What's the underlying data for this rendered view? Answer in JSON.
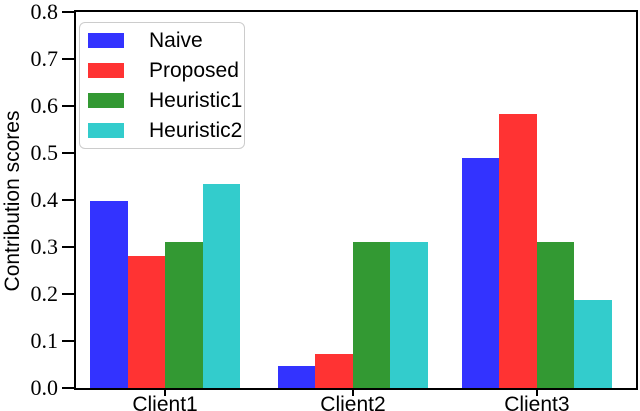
{
  "chart_data": {
    "type": "bar",
    "title": "",
    "xlabel": "",
    "ylabel": "Contribution scores",
    "categories": [
      "Client1",
      "Client2",
      "Client3"
    ],
    "series": [
      {
        "name": "Naive",
        "color": "#3333FF",
        "values": [
          0.398,
          0.047,
          0.49
        ]
      },
      {
        "name": "Proposed",
        "color": "#FF3333",
        "values": [
          0.281,
          0.072,
          0.582
        ]
      },
      {
        "name": "Heuristic1",
        "color": "#339933",
        "values": [
          0.31,
          0.31,
          0.31
        ]
      },
      {
        "name": "Heuristic2",
        "color": "#33CCCC",
        "values": [
          0.435,
          0.31,
          0.187
        ]
      }
    ],
    "ylim": [
      0,
      0.8
    ],
    "ytick_labels": [
      "0.0",
      "0.1",
      "0.2",
      "0.3",
      "0.4",
      "0.5",
      "0.6",
      "0.7",
      "0.8"
    ],
    "grid": false,
    "legend": {
      "position": "upper left",
      "entries": [
        "Naive",
        "Proposed",
        "Heuristic1",
        "Heuristic2"
      ]
    },
    "background_color": "#FFFFFF",
    "axis_color": "#000000",
    "text_color": "#000000"
  }
}
